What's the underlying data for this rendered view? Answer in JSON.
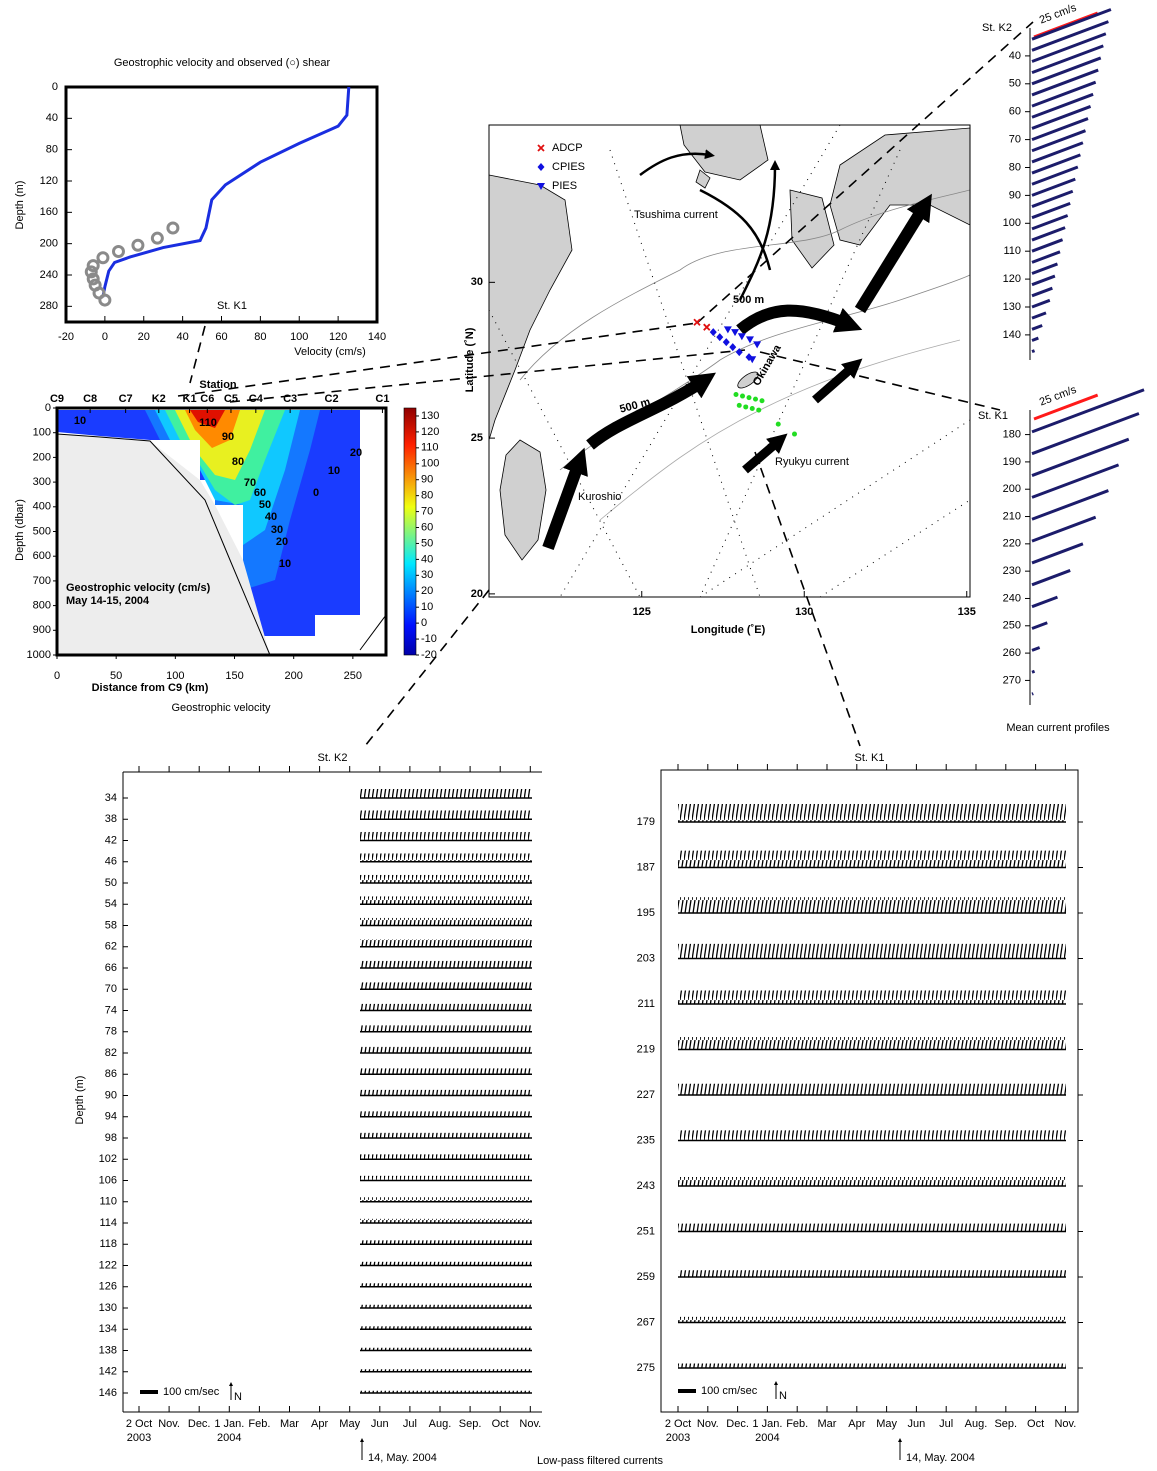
{
  "chart_data": [
    {
      "type": "profile",
      "title": "Geostrophic velocity and observed (○) shear",
      "xlabel": "Velocity (cm/s)",
      "ylabel": "Depth (m)",
      "xlim": [
        -20,
        140
      ],
      "xticks": [
        -20,
        0,
        20,
        40,
        60,
        80,
        100,
        120,
        140
      ],
      "ylim": [
        0,
        300
      ],
      "yticks": [
        0,
        40,
        80,
        120,
        160,
        200,
        240,
        280
      ],
      "y_inverted": true,
      "annotation": "St. K1",
      "series": [
        {
          "type": "line",
          "color": "#1a2ee0",
          "x": [
            125.5,
            124.5,
            120,
            100,
            80,
            62,
            55,
            52,
            49,
            30,
            13,
            5,
            2,
            0,
            -1
          ],
          "y": [
            0,
            36,
            50,
            72,
            96,
            125,
            144,
            180,
            196,
            205,
            217,
            224,
            235,
            255,
            268
          ]
        },
        {
          "type": "scatter",
          "color": "#8a8a8a",
          "x": [
            35,
            27,
            17,
            7,
            -1,
            -6,
            -7,
            -6,
            -5,
            -3,
            0
          ],
          "y": [
            180,
            193,
            202,
            210,
            218,
            228,
            236,
            245,
            253,
            263,
            272
          ]
        }
      ]
    },
    {
      "type": "contour",
      "caption": "Geostrophic velocity",
      "xlabel": "Distance from C9 (km)",
      "ylabel": "Depth (dbar)",
      "xlim": [
        0,
        278
      ],
      "xticks": [
        0,
        50,
        100,
        150,
        200,
        250
      ],
      "ylim": [
        0,
        1000
      ],
      "yticks": [
        0,
        100,
        200,
        300,
        400,
        500,
        600,
        700,
        800,
        900,
        1000
      ],
      "y_inverted": true,
      "stations_label": "Station",
      "stations": {
        "names": [
          "C9",
          "C8",
          "C7",
          "K2",
          "K1",
          "C6",
          "C5",
          "C4",
          "C3",
          "C2",
          "C1"
        ],
        "x": [
          0,
          28,
          58,
          86,
          112,
          127,
          147,
          168,
          197,
          232,
          275
        ]
      },
      "colorbar": {
        "lim": [
          -20,
          135
        ],
        "ticks": [
          -20,
          -10,
          0,
          10,
          20,
          30,
          40,
          50,
          60,
          70,
          80,
          90,
          100,
          110,
          120,
          130
        ]
      },
      "annotations": [
        "Geostrophic velocity (cm/s)",
        "May 14-15, 2004"
      ],
      "contour_labels": [
        10,
        110,
        90,
        80,
        70,
        60,
        50,
        40,
        30,
        20,
        10,
        0,
        10,
        20
      ]
    },
    {
      "type": "map",
      "xlabel": "Longitude (˚E)",
      "ylabel": "Latitude (˚N)",
      "xlim": [
        120.3,
        135.1
      ],
      "xticks": [
        125,
        130,
        135
      ],
      "ylim": [
        19.9,
        35.05
      ],
      "yticks": [
        20,
        25,
        30
      ],
      "series": [
        {
          "name": "ADCP",
          "marker": "x",
          "color": "#e01010",
          "x": [
            126.7,
            127.0
          ],
          "y": [
            28.72,
            28.56
          ]
        },
        {
          "name": "CPIES",
          "marker": "diamond",
          "color": "#1010e0",
          "x": [
            127.2,
            127.4,
            127.6,
            127.8,
            128.0,
            128.3
          ],
          "y": [
            28.4,
            28.24,
            28.08,
            27.92,
            27.76,
            27.6
          ]
        },
        {
          "name": "PIES",
          "marker": "triangle",
          "color": "#1010e0",
          "x": [
            127.65,
            127.87,
            128.08,
            128.33,
            128.55,
            128.4
          ],
          "y": [
            28.49,
            28.4,
            28.27,
            28.17,
            28.01,
            27.53
          ]
        },
        {
          "marker": "dot",
          "color": "#22dd22",
          "x": [
            127.9,
            128.1,
            128.3,
            128.5,
            128.7,
            128.0,
            128.2,
            128.4,
            128.6,
            129.2,
            129.7
          ],
          "y": [
            26.4,
            26.35,
            26.3,
            26.25,
            26.2,
            26.05,
            26.0,
            25.95,
            25.9,
            25.45,
            25.13
          ]
        }
      ],
      "labels": [
        "Tsushima current",
        "Kuroshio",
        "Ryukyu current",
        "Okinawa",
        "500 m",
        "500 m"
      ]
    },
    {
      "type": "sticks",
      "caption": "Mean current profiles",
      "panels": [
        {
          "name": "St. K2",
          "ylim": [
            30,
            149
          ],
          "yticks": [
            40,
            50,
            60,
            70,
            80,
            90,
            100,
            110,
            120,
            130,
            140
          ],
          "color": "#1c1c6b",
          "scale": {
            "value": 25,
            "label": "25 cm/s"
          },
          "scale_color": "#ff1a1a",
          "depths": [
            34,
            38,
            42,
            46,
            50,
            54,
            58,
            62,
            66,
            70,
            74,
            78,
            82,
            86,
            90,
            94,
            98,
            102,
            106,
            110,
            114,
            118,
            122,
            126,
            130,
            134,
            138,
            142,
            146
          ],
          "speed": [
            31,
            30,
            29,
            28,
            27,
            26,
            25,
            24,
            23,
            22,
            21,
            20,
            19,
            18,
            17,
            16,
            15,
            14,
            13,
            12,
            11,
            10,
            9,
            8,
            7,
            5.5,
            4,
            2.5,
            1
          ]
        },
        {
          "name": "St. K1",
          "ylim": [
            171,
            279
          ],
          "yticks": [
            180,
            190,
            200,
            210,
            220,
            230,
            240,
            250,
            260,
            270
          ],
          "color": "#1c1c6b",
          "scale": {
            "value": 25,
            "label": "25 cm/s"
          },
          "scale_color": "#ff1a1a",
          "depths": [
            179,
            187,
            195,
            203,
            211,
            219,
            227,
            235,
            243,
            251,
            259,
            267,
            275
          ],
          "speed": [
            44,
            42,
            38,
            34,
            30,
            25,
            20,
            15,
            10,
            6,
            3,
            1,
            0.5
          ]
        }
      ]
    },
    {
      "type": "stickplot",
      "title": "St. K2",
      "ylabel": "Depth (m)",
      "caption": "Low-pass filtered currents",
      "depths": [
        34,
        38,
        42,
        46,
        50,
        54,
        58,
        62,
        66,
        70,
        74,
        78,
        82,
        86,
        90,
        94,
        98,
        102,
        106,
        110,
        114,
        118,
        122,
        126,
        130,
        134,
        138,
        142,
        146
      ],
      "ylim": [
        34,
        146
      ],
      "months": [
        "2 Oct",
        "Nov.",
        "Dec.",
        "1 Jan.",
        "Feb.",
        "Mar",
        "Apr",
        "May",
        "Jun",
        "Jul",
        "Aug.",
        "Sep.",
        "Oct",
        "Nov."
      ],
      "years": [
        "2003",
        "2004"
      ],
      "scale_label": "100 cm/sec",
      "north": "N",
      "start_label": "14, May. 2004"
    },
    {
      "type": "stickplot",
      "title": "St. K1",
      "depths": [
        179,
        187,
        195,
        203,
        211,
        219,
        227,
        235,
        243,
        251,
        259,
        267,
        275
      ],
      "ylim": [
        179,
        275
      ],
      "months": [
        "2 Oct",
        "Nov.",
        "Dec.",
        "1 Jan.",
        "Feb.",
        "Mar",
        "Apr",
        "May",
        "Jun",
        "Jul",
        "Aug.",
        "Sep.",
        "Oct",
        "Nov."
      ],
      "years": [
        "2003",
        "2004"
      ],
      "scale_label": "100 cm/sec",
      "north": "N",
      "start_label": "14, May. 2004"
    }
  ]
}
